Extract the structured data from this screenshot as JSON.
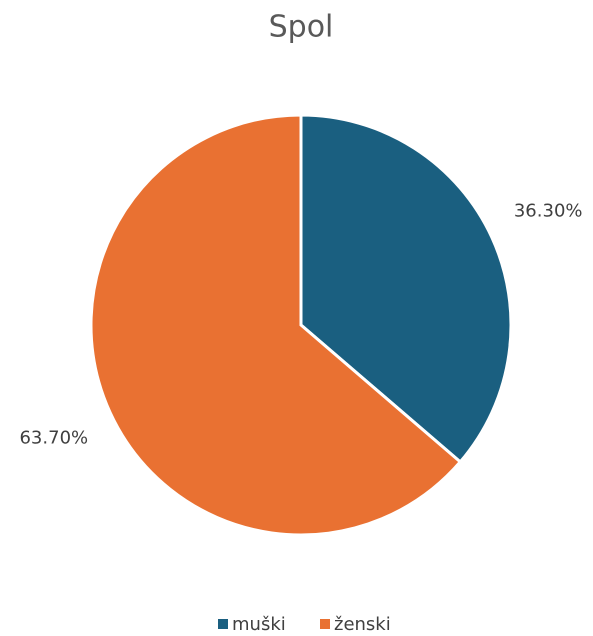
{
  "chart_data": {
    "type": "pie",
    "title": "Spol",
    "categories": [
      "muški",
      "ženski"
    ],
    "values": [
      36.3,
      63.7
    ],
    "value_labels": [
      "36.30%",
      "63.70%"
    ],
    "colors": [
      "#1a5f80",
      "#e97132"
    ],
    "legend": "bottom"
  }
}
